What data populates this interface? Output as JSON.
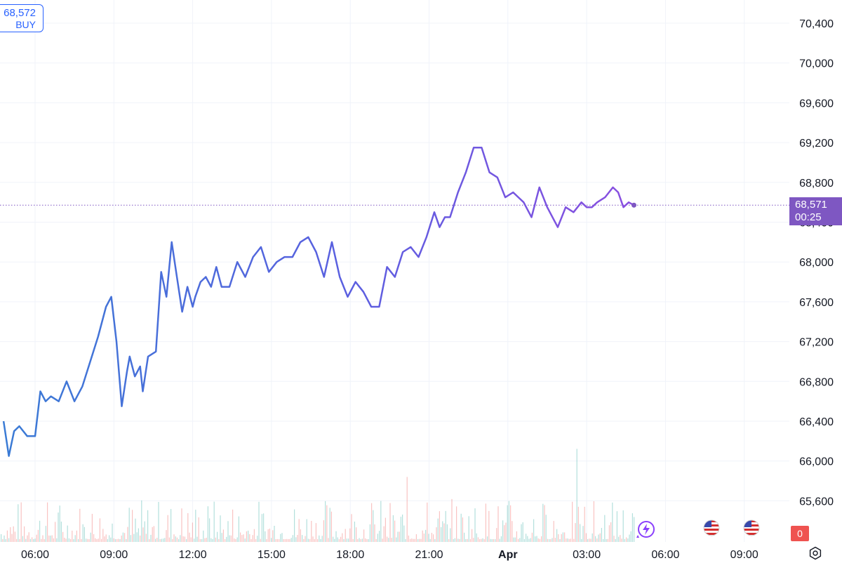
{
  "chart_data": {
    "type": "line",
    "y_ticks": [
      "70,400",
      "70,000",
      "69,600",
      "69,200",
      "68,800",
      "68,400",
      "68,000",
      "67,600",
      "67,200",
      "66,800",
      "66,400",
      "66,000",
      "65,600"
    ],
    "y_tick_values": [
      70400,
      70000,
      69600,
      69200,
      68800,
      68400,
      68000,
      67600,
      67200,
      66800,
      66400,
      66000,
      65600
    ],
    "x_ticks": [
      {
        "label": "06:00",
        "hour": 6,
        "bold": false
      },
      {
        "label": "09:00",
        "hour": 9,
        "bold": false
      },
      {
        "label": "12:00",
        "hour": 12,
        "bold": false
      },
      {
        "label": "15:00",
        "hour": 15,
        "bold": false
      },
      {
        "label": "18:00",
        "hour": 18,
        "bold": false
      },
      {
        "label": "21:00",
        "hour": 21,
        "bold": false
      },
      {
        "label": "Apr",
        "hour": 24,
        "bold": true
      },
      {
        "label": "03:00",
        "hour": 27,
        "bold": false
      },
      {
        "label": "06:00",
        "hour": 30,
        "bold": false
      },
      {
        "label": "09:00",
        "hour": 33,
        "bold": false
      }
    ],
    "series": [
      {
        "x": [
          4.8,
          5.0,
          5.2,
          5.4,
          5.7,
          6.0,
          6.2,
          6.4,
          6.6,
          6.9,
          7.2,
          7.5,
          7.8,
          8.1,
          8.4,
          8.7,
          8.9,
          9.1,
          9.3,
          9.5,
          9.6,
          9.8,
          10.0,
          10.1,
          10.3,
          10.6,
          10.8,
          11.0,
          11.2,
          11.4,
          11.6,
          11.8,
          12.0,
          12.1,
          12.3,
          12.5,
          12.7,
          12.9,
          13.1,
          13.4,
          13.7,
          14.0,
          14.3,
          14.6,
          14.9,
          15.2,
          15.5,
          15.8,
          16.1,
          16.4,
          16.7,
          17.0,
          17.3,
          17.6,
          17.9,
          18.2,
          18.5,
          18.8,
          19.1,
          19.4,
          19.7,
          20.0,
          20.3,
          20.6,
          20.9,
          21.2,
          21.4,
          21.6,
          21.8,
          22.1,
          22.4,
          22.7,
          23.0,
          23.3,
          23.6,
          23.9,
          24.2,
          24.4,
          24.6,
          24.9,
          25.2,
          25.5,
          25.7,
          25.9,
          26.2,
          26.5,
          26.8,
          27.0,
          27.2,
          27.4,
          27.7,
          28.0,
          28.2,
          28.4,
          28.6,
          28.8
        ],
        "y": [
          66400,
          66050,
          66300,
          66350,
          66250,
          66250,
          66700,
          66600,
          66650,
          66600,
          66800,
          66600,
          66750,
          67000,
          67250,
          67550,
          67650,
          67200,
          66550,
          66900,
          67050,
          66850,
          66950,
          66700,
          67050,
          67100,
          67900,
          67650,
          68200,
          67850,
          67500,
          67750,
          67550,
          67650,
          67800,
          67850,
          67750,
          67950,
          67750,
          67750,
          68000,
          67850,
          68050,
          68150,
          67900,
          68000,
          68050,
          68050,
          68200,
          68250,
          68100,
          67850,
          68200,
          67850,
          67650,
          67800,
          67700,
          67550,
          67550,
          67950,
          67850,
          68100,
          68150,
          68050,
          68250,
          68500,
          68350,
          68450,
          68450,
          68700,
          68900,
          69150,
          69150,
          68900,
          68850,
          68650,
          68700,
          68650,
          68600,
          68450,
          68750,
          68550,
          68450,
          68350,
          68550,
          68500,
          68600,
          68550,
          68550,
          68600,
          68650,
          68750,
          68700,
          68550,
          68600,
          68571
        ]
      }
    ],
    "last_price": "68,571",
    "countdown": "00:25",
    "grid": true
  },
  "buy_widget": {
    "price": "68,572",
    "label": "BUY"
  },
  "badge_count": "0",
  "colors": {
    "line_start": "#3a7bd5",
    "line_end": "#7b4fe0",
    "price_tag": "#7e57c2",
    "buy_border": "#2962ff",
    "grid": "#f0f3fa"
  }
}
